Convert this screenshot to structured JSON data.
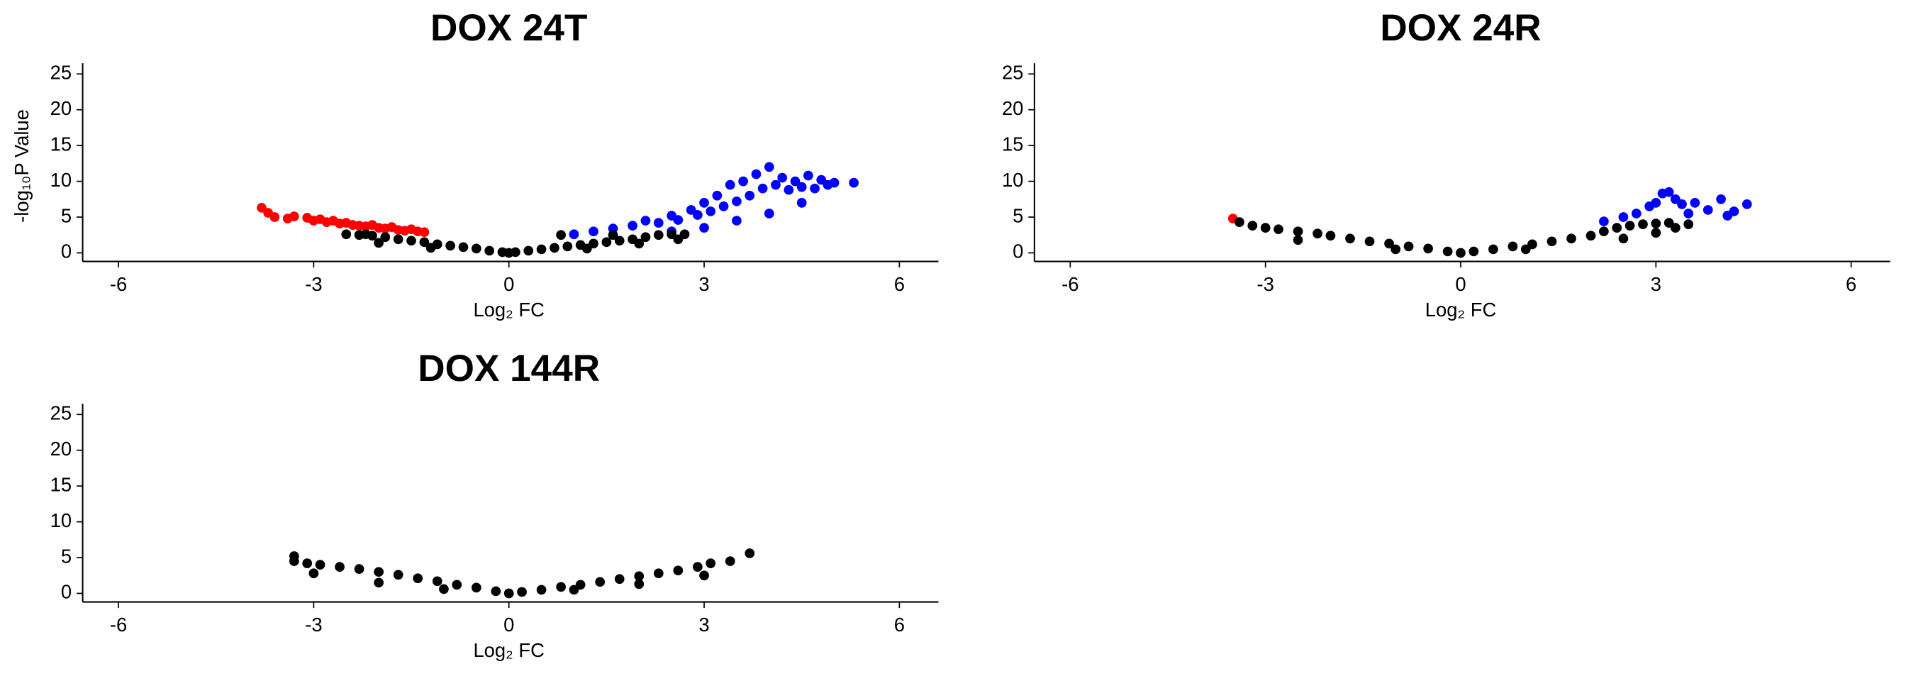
{
  "chart_data": [
    {
      "type": "scatter",
      "title": "DOX 24T",
      "x_label": "Log₂ FC",
      "y_label": "-log₁₀P Value",
      "xlim": [
        -6.55,
        6.6
      ],
      "ylim": [
        -1.2,
        26.5
      ],
      "xticks": [
        -6,
        -3,
        0,
        3,
        6
      ],
      "yticks": [
        0,
        5,
        10,
        15,
        20,
        25
      ],
      "series": [
        {
          "color": "#ff0000",
          "x": [
            -3.8,
            -3.7,
            -3.6,
            -3.4,
            -3.3,
            -3.1,
            -3.0,
            -2.9,
            -2.8,
            -2.7,
            -2.6,
            -2.5,
            -2.4,
            -2.3,
            -2.2,
            -2.1,
            -2.0,
            -1.9,
            -1.8,
            -1.7,
            -1.6,
            -1.5,
            -1.4,
            -1.3
          ],
          "values": [
            6.3,
            5.6,
            5.0,
            4.8,
            5.1,
            4.9,
            4.5,
            4.7,
            4.3,
            4.5,
            4.1,
            4.2,
            3.9,
            3.8,
            3.7,
            3.9,
            3.5,
            3.4,
            3.6,
            3.2,
            3.1,
            3.3,
            3.0,
            2.9
          ]
        },
        {
          "color": "#0000ff",
          "x": [
            1.0,
            1.3,
            1.6,
            1.9,
            2.1,
            2.3,
            2.5,
            2.6,
            2.8,
            2.9,
            3.0,
            3.1,
            3.2,
            3.3,
            3.4,
            3.5,
            3.6,
            3.7,
            3.8,
            3.9,
            4.0,
            4.1,
            4.2,
            4.3,
            4.4,
            4.5,
            4.6,
            4.7,
            4.8,
            4.9,
            5.0,
            5.3,
            3.0,
            3.5,
            4.0,
            4.5,
            2.5
          ],
          "values": [
            2.6,
            3.0,
            3.4,
            3.8,
            4.5,
            4.2,
            5.2,
            4.6,
            6.0,
            5.3,
            7.0,
            5.8,
            8.0,
            6.5,
            9.5,
            7.2,
            10.0,
            8.0,
            11.0,
            9.0,
            12.0,
            9.5,
            10.5,
            8.8,
            10.0,
            9.2,
            10.8,
            9.0,
            10.2,
            9.5,
            9.8,
            9.8,
            3.5,
            4.5,
            5.5,
            7.0,
            3.0
          ]
        },
        {
          "color": "#000000",
          "x": [
            -2.5,
            -2.3,
            -2.1,
            -1.9,
            -1.7,
            -1.5,
            -1.3,
            -1.1,
            -0.9,
            -0.7,
            -0.5,
            -0.3,
            -0.1,
            0,
            0.1,
            0.3,
            0.5,
            0.7,
            0.9,
            1.1,
            1.3,
            1.5,
            1.7,
            1.9,
            2.1,
            2.3,
            2.5,
            2.7,
            -2.0,
            -1.2,
            1.2,
            2.0,
            2.6,
            1.6,
            -2.2,
            0.8
          ],
          "values": [
            2.6,
            2.5,
            2.4,
            2.2,
            1.9,
            1.7,
            1.5,
            1.2,
            1.0,
            0.8,
            0.6,
            0.3,
            0.1,
            0,
            0.1,
            0.3,
            0.5,
            0.7,
            0.9,
            1.1,
            1.3,
            1.5,
            1.7,
            1.9,
            2.2,
            2.5,
            2.6,
            2.6,
            1.4,
            0.7,
            0.6,
            1.3,
            1.9,
            2.5,
            2.6,
            2.5
          ]
        }
      ]
    },
    {
      "type": "scatter",
      "title": "DOX 24R",
      "x_label": "Log₂ FC",
      "xlim": [
        -6.55,
        6.6
      ],
      "ylim": [
        -1.2,
        26.5
      ],
      "xticks": [
        -6,
        -3,
        0,
        3,
        6
      ],
      "yticks": [
        0,
        5,
        10,
        15,
        20,
        25
      ],
      "series": [
        {
          "color": "#ff0000",
          "x": [
            -3.5
          ],
          "values": [
            4.8
          ]
        },
        {
          "color": "#0000ff",
          "x": [
            2.2,
            2.5,
            2.7,
            2.9,
            3.0,
            3.1,
            3.2,
            3.3,
            3.4,
            3.6,
            3.8,
            4.0,
            4.2,
            4.4,
            4.1,
            3.5
          ],
          "values": [
            4.4,
            5.0,
            5.5,
            6.5,
            7.0,
            8.3,
            8.5,
            7.5,
            6.8,
            7.0,
            6.0,
            7.5,
            5.8,
            6.8,
            5.2,
            5.5
          ]
        },
        {
          "color": "#000000",
          "x": [
            -3.4,
            -3.2,
            -3.0,
            -2.8,
            -2.5,
            -2.2,
            -2.0,
            -1.7,
            -1.4,
            -1.1,
            -0.8,
            -0.5,
            -0.2,
            0,
            0.2,
            0.5,
            0.8,
            1.1,
            1.4,
            1.7,
            2.0,
            2.2,
            2.4,
            2.6,
            2.8,
            3.0,
            3.2,
            3.5,
            -2.5,
            -1.0,
            1.0,
            2.5,
            3.0,
            3.3
          ],
          "values": [
            4.3,
            3.8,
            3.5,
            3.3,
            3.0,
            2.7,
            2.4,
            2.0,
            1.6,
            1.3,
            0.9,
            0.6,
            0.2,
            0,
            0.2,
            0.5,
            0.9,
            1.2,
            1.6,
            2.0,
            2.4,
            3.0,
            3.5,
            3.8,
            4.0,
            4.1,
            4.2,
            4.0,
            1.8,
            0.5,
            0.5,
            2.0,
            2.8,
            3.5
          ]
        }
      ]
    },
    {
      "type": "scatter",
      "title": "DOX 144R",
      "x_label": "Log₂ FC",
      "xlim": [
        -6.55,
        6.6
      ],
      "ylim": [
        -1.2,
        26.5
      ],
      "xticks": [
        -6,
        -3,
        0,
        3,
        6
      ],
      "yticks": [
        0,
        5,
        10,
        15,
        20,
        25
      ],
      "series": [
        {
          "color": "#000000",
          "x": [
            -3.3,
            -3.3,
            -3.1,
            -2.9,
            -2.6,
            -2.3,
            -2.0,
            -1.7,
            -1.4,
            -1.1,
            -0.8,
            -0.5,
            -0.2,
            0,
            0.2,
            0.5,
            0.8,
            1.1,
            1.4,
            1.7,
            2.0,
            2.3,
            2.6,
            2.9,
            3.1,
            3.4,
            3.7,
            -3.0,
            -2.0,
            -1.0,
            1.0,
            2.0,
            3.0
          ],
          "values": [
            5.2,
            4.5,
            4.2,
            4.0,
            3.7,
            3.4,
            3.0,
            2.6,
            2.1,
            1.7,
            1.2,
            0.8,
            0.3,
            0,
            0.2,
            0.5,
            0.9,
            1.2,
            1.6,
            2.0,
            2.4,
            2.8,
            3.2,
            3.7,
            4.2,
            4.5,
            5.6,
            2.8,
            1.5,
            0.6,
            0.5,
            1.3,
            2.5
          ]
        }
      ]
    }
  ]
}
